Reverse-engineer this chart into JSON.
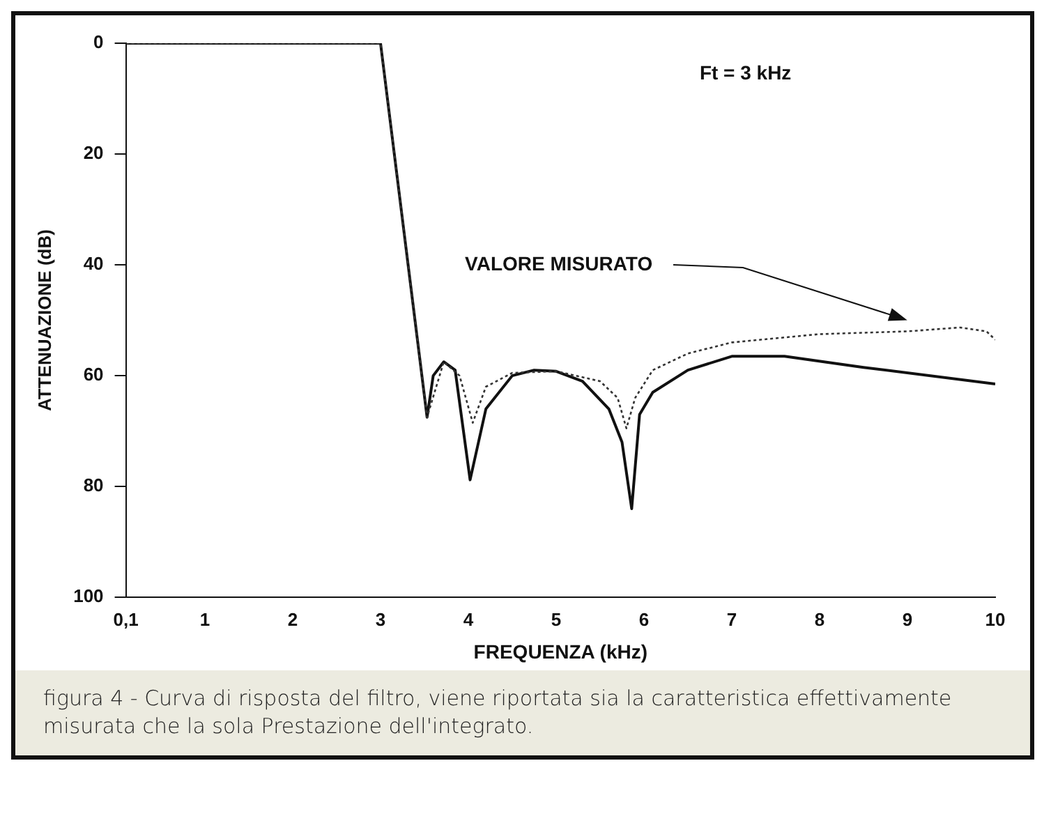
{
  "chart_data": {
    "type": "line",
    "xlabel": "FREQUENZA (kHz)",
    "ylabel": "ATTENUAZIONE (dB)",
    "xlim": [
      0.1,
      10
    ],
    "xticks": [
      {
        "value": 0.1,
        "label": "0,1"
      },
      1,
      2,
      3,
      4,
      5,
      6,
      7,
      8,
      9,
      10
    ],
    "ylim": [
      100,
      0
    ],
    "yticks": [
      0,
      20,
      40,
      60,
      80,
      100
    ],
    "grid": false,
    "legend": false,
    "marker": "none",
    "series": [
      {
        "name": "VALORE MISURATO",
        "color": "#333333",
        "line_style": "dotted",
        "x": [
          0.1,
          3,
          3.53,
          3.72,
          3.9,
          4.05,
          4.2,
          4.5,
          5,
          5.5,
          5.7,
          5.8,
          5.9,
          6.1,
          6.5,
          7,
          8,
          9,
          9.6,
          9.9,
          10
        ],
        "values": [
          0,
          0,
          67.5,
          57.5,
          60,
          68.5,
          62,
          59.5,
          59.2,
          61,
          64,
          69.5,
          64,
          59,
          56,
          54,
          52.5,
          52,
          51.3,
          52,
          53.5
        ]
      },
      {
        "color": "#111111",
        "line_style": "solid",
        "x": [
          0.1,
          3,
          3.53,
          3.6,
          3.72,
          3.85,
          4.02,
          4.2,
          4.5,
          4.75,
          5,
          5.3,
          5.6,
          5.75,
          5.86,
          5.95,
          6.1,
          6.5,
          7,
          7.6,
          8.5,
          10
        ],
        "values": [
          0,
          0,
          67.5,
          60,
          57.5,
          59,
          78.8,
          66,
          60,
          59,
          59.2,
          61,
          66,
          72,
          84,
          67,
          63,
          59,
          56.5,
          56.5,
          58.5,
          61.5
        ]
      }
    ],
    "annotations": [
      "Ft = 3 kHz",
      "figura 4 - Curva di risposta del filtro, viene riportata sia la caratteristica effettivamente misurata che la sola Prestazione dell'integrato."
    ]
  }
}
